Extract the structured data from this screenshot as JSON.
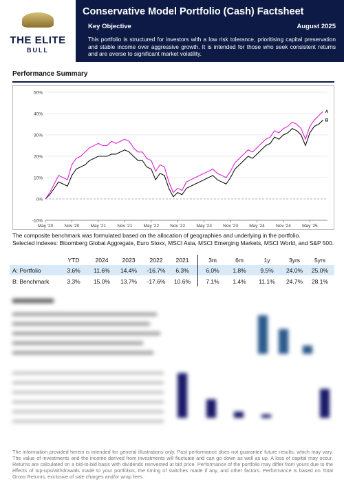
{
  "logo": {
    "top": "THE ELITE",
    "bottom": "BULL"
  },
  "header": {
    "title": "Conservative Model Portfolio (Cash) Factsheet",
    "subtitle": "Key Objective",
    "date": "August 2025",
    "objective": "This portfolio is structured for investors with a low risk tolerance, prioritising capital preservation and stable income over aggressive growth. It is intended for those who seek consistent returns and are averse to significant market volatility."
  },
  "section_title": "Performance Summary",
  "chart_data": {
    "type": "line",
    "x": [
      "2020-05",
      "2020-06",
      "2020-07",
      "2020-08",
      "2020-09",
      "2020-10",
      "2020-11",
      "2020-12",
      "2021-01",
      "2021-02",
      "2021-03",
      "2021-04",
      "2021-05",
      "2021-06",
      "2021-07",
      "2021-08",
      "2021-09",
      "2021-10",
      "2021-11",
      "2021-12",
      "2022-01",
      "2022-02",
      "2022-03",
      "2022-04",
      "2022-05",
      "2022-06",
      "2022-07",
      "2022-08",
      "2022-09",
      "2022-10",
      "2022-11",
      "2022-12",
      "2023-01",
      "2023-02",
      "2023-03",
      "2023-04",
      "2023-05",
      "2023-06",
      "2023-07",
      "2023-08",
      "2023-09",
      "2023-10",
      "2023-11",
      "2023-12",
      "2024-01",
      "2024-02",
      "2024-03",
      "2024-04",
      "2024-05",
      "2024-06",
      "2024-07",
      "2024-08",
      "2024-09",
      "2024-10",
      "2024-11",
      "2024-12",
      "2025-01",
      "2025-02",
      "2025-03",
      "2025-04",
      "2025-05",
      "2025-06",
      "2025-07",
      "2025-08"
    ],
    "series": [
      {
        "name": "A",
        "color": "#e020d8",
        "values": [
          0,
          3,
          7,
          11,
          10,
          9,
          16,
          19,
          20,
          22,
          24,
          25,
          26,
          25,
          25,
          27,
          26,
          27,
          28,
          27,
          24,
          22,
          22,
          19,
          18,
          13,
          16,
          15,
          8,
          3,
          5,
          4,
          8,
          9,
          10,
          11,
          12,
          13,
          14,
          12,
          11,
          10,
          13,
          17,
          19,
          21,
          23,
          22,
          24,
          26,
          28,
          29,
          32,
          31,
          33,
          34,
          36,
          35,
          33,
          28,
          34,
          37,
          39,
          41
        ]
      },
      {
        "name": "B",
        "color": "#111111",
        "values": [
          0,
          2,
          5,
          8,
          7,
          6,
          11,
          14,
          15,
          16,
          18,
          19,
          20,
          20,
          20,
          21,
          21,
          22,
          23,
          22,
          20,
          18,
          18,
          15,
          14,
          9,
          12,
          11,
          5,
          1,
          3,
          2,
          5,
          6,
          7,
          8,
          9,
          10,
          11,
          9,
          8,
          7,
          10,
          14,
          16,
          18,
          20,
          19,
          21,
          23,
          25,
          26,
          29,
          28,
          30,
          31,
          33,
          32,
          30,
          25,
          31,
          34,
          35,
          37
        ]
      }
    ],
    "xlim": [
      "2020-05",
      "2025-09"
    ],
    "xticks": [
      {
        "value": "2020-05",
        "label": "May '20"
      },
      {
        "value": "2020-11",
        "label": "Nov '20"
      },
      {
        "value": "2021-05",
        "label": "May '21"
      },
      {
        "value": "2021-11",
        "label": "Nov '21"
      },
      {
        "value": "2022-05",
        "label": "May '22"
      },
      {
        "value": "2022-11",
        "label": "Nov '22"
      },
      {
        "value": "2023-05",
        "label": "May '23"
      },
      {
        "value": "2023-11",
        "label": "Nov '23"
      },
      {
        "value": "2024-05",
        "label": "May '24"
      },
      {
        "value": "2024-11",
        "label": "Nov '24"
      },
      {
        "value": "2025-05",
        "label": "May '25"
      }
    ],
    "ylim": [
      -10,
      50
    ],
    "yticks": [
      {
        "value": -10,
        "label": "-10%"
      },
      {
        "value": 0,
        "label": "0%"
      },
      {
        "value": 10,
        "label": "10%"
      },
      {
        "value": 20,
        "label": "20%"
      },
      {
        "value": 30,
        "label": "30%"
      },
      {
        "value": 40,
        "label": "40%"
      },
      {
        "value": 50,
        "label": "50%"
      }
    ],
    "grid": true
  },
  "notes": [
    "The composite benchmark was formulated based on the allocation of geographies and underlying in the portfolio.",
    "Selected indexes: Bloomberg Global Aggregate, Euro Stoxx, MSCI Asia, MSCI Emerging Markets, MSCI World, and S&P 500."
  ],
  "table": {
    "header": [
      "YTD",
      "2024",
      "2023",
      "2022",
      "2021",
      "3m",
      "6m",
      "1y",
      "3yrs",
      "5yrs"
    ],
    "rows": [
      [
        "A: Portfolio",
        "3.6%",
        "11.6%",
        "14.4%",
        "-16.7%",
        "6.3%",
        "6.0%",
        "1.8%",
        "9.5%",
        "24.0%",
        "25.0%"
      ],
      [
        "B: Benchmark",
        "3.3%",
        "15.0%",
        "13.7%",
        "-17.6%",
        "10.6%",
        "7.1%",
        "1.4%",
        "11.1%",
        "24.7%",
        "28.1%"
      ]
    ]
  },
  "disclaimer": "The information provided herein is intended for general illustrations only. Past performance does not guarantee future results, which may vary. The value of investments and the income derived from investments will fluctuate and can go down as well as up. A loss of capital may occur. Returns are calculated on a bid-to-bid basis with dividends reinvested at bid price. Performance of the portfolio may differ from yours due to the effects of top-ups/withdrawals made to your portfolios, the timing of switches made if any, and other factors. Performance is based on Total Gross Returns, exclusive of sale charges and/or wrap fees."
}
